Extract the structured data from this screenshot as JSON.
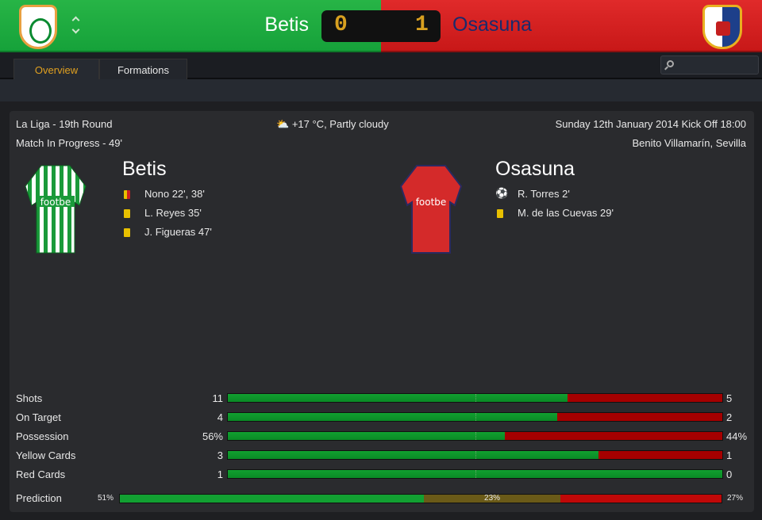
{
  "header": {
    "home_team": "Betis",
    "away_team": "Osasuna",
    "home_score": "0",
    "away_score": "1",
    "colors": {
      "home": "#16a23a",
      "away": "#c81818",
      "score": "#d8a020"
    }
  },
  "tabs": [
    {
      "label": "Overview",
      "active": true
    },
    {
      "label": "Formations",
      "active": false
    }
  ],
  "search": {
    "placeholder": "",
    "icon": "search-icon"
  },
  "info": {
    "competition": "La Liga - 19th Round",
    "status": "Match In Progress - 49'",
    "weather": "+17 °C, Partly cloudy",
    "weather_icon": "partly-cloudy-icon",
    "kickoff": "Sunday 12th January 2014 Kick Off 18:00",
    "venue": "Benito Villamarín, Sevilla"
  },
  "home": {
    "name": "Betis",
    "shirt_sponsor": "footbe",
    "events": [
      {
        "type": "second-yellow",
        "text": "Nono 22', 38'"
      },
      {
        "type": "yellow",
        "text": "L. Reyes 35'"
      },
      {
        "type": "yellow",
        "text": "J. Figueras 47'"
      }
    ]
  },
  "away": {
    "name": "Osasuna",
    "shirt_sponsor": "footbe",
    "events": [
      {
        "type": "goal",
        "text": "R. Torres 2'"
      },
      {
        "type": "yellow",
        "text": "M. de las Cuevas 29'"
      }
    ]
  },
  "stats": [
    {
      "label": "Shots",
      "home": "11",
      "away": "5",
      "home_share": 0.6875
    },
    {
      "label": "On Target",
      "home": "4",
      "away": "2",
      "home_share": 0.6667
    },
    {
      "label": "Possession",
      "home": "56%",
      "away": "44%",
      "home_share": 0.56
    },
    {
      "label": "Yellow Cards",
      "home": "3",
      "away": "1",
      "home_share": 0.75
    },
    {
      "label": "Red Cards",
      "home": "1",
      "away": "0",
      "home_share": 1
    }
  ],
  "prediction": {
    "label": "Prediction",
    "home": "51%",
    "draw": "23%",
    "away": "27%",
    "home_value": 51,
    "draw_value": 23,
    "away_value": 27
  }
}
